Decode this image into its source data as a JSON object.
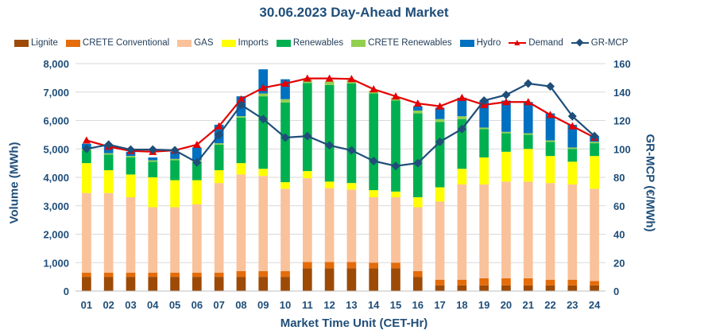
{
  "chart_data": {
    "type": "bar",
    "title": "30.06.2023  Day-Ahead Market",
    "xlabel": "Market Time Unit (CET-Hr)",
    "ylabel": "Volume (MWh)",
    "y2label": "GR-MCP (€/MWh)",
    "ylim": [
      0,
      8000
    ],
    "y2lim": [
      0,
      160
    ],
    "yticks": [
      "0",
      "1,000",
      "2,000",
      "3,000",
      "4,000",
      "5,000",
      "6,000",
      "7,000",
      "8,000"
    ],
    "y2ticks": [
      "0",
      "20",
      "40",
      "60",
      "80",
      "100",
      "120",
      "140",
      "160"
    ],
    "categories": [
      "01",
      "02",
      "03",
      "04",
      "05",
      "06",
      "07",
      "08",
      "09",
      "10",
      "11",
      "12",
      "13",
      "14",
      "15",
      "16",
      "17",
      "18",
      "19",
      "20",
      "21",
      "22",
      "23",
      "24"
    ],
    "series": [
      {
        "name": "Lignite",
        "color": "#9c4a06",
        "values": [
          500,
          500,
          500,
          500,
          500,
          500,
          500,
          500,
          500,
          500,
          800,
          800,
          800,
          800,
          800,
          500,
          200,
          200,
          200,
          200,
          200,
          200,
          200,
          200
        ]
      },
      {
        "name": "CRETE Conventional",
        "color": "#e46c0a",
        "values": [
          150,
          150,
          150,
          150,
          150,
          150,
          150,
          200,
          200,
          200,
          220,
          220,
          220,
          200,
          200,
          200,
          200,
          200,
          250,
          250,
          250,
          200,
          200,
          150
        ]
      },
      {
        "name": "GAS",
        "color": "#f9c29b",
        "values": [
          2800,
          2800,
          2650,
          2300,
          2300,
          2400,
          3150,
          3400,
          3350,
          2900,
          2950,
          2600,
          2550,
          2300,
          2300,
          2250,
          2750,
          3350,
          3300,
          3400,
          3400,
          3400,
          3350,
          3250
        ]
      },
      {
        "name": "Imports",
        "color": "#ffff00",
        "values": [
          1050,
          800,
          800,
          1050,
          950,
          850,
          450,
          400,
          250,
          230,
          250,
          230,
          230,
          250,
          200,
          350,
          500,
          550,
          950,
          1050,
          1150,
          950,
          800,
          1150
        ]
      },
      {
        "name": "Renewables",
        "color": "#00b050",
        "values": [
          450,
          550,
          600,
          550,
          700,
          650,
          900,
          1600,
          2550,
          2800,
          3100,
          3400,
          3500,
          3400,
          3200,
          2950,
          2300,
          1750,
          1000,
          650,
          500,
          500,
          450,
          450
        ]
      },
      {
        "name": "CRETE Renewables",
        "color": "#92d050",
        "values": [
          50,
          50,
          50,
          50,
          50,
          50,
          50,
          50,
          100,
          120,
          130,
          130,
          130,
          100,
          100,
          100,
          100,
          100,
          50,
          50,
          50,
          50,
          50,
          50
        ]
      },
      {
        "name": "Hydro",
        "color": "#0070c0",
        "values": [
          180,
          280,
          150,
          100,
          250,
          450,
          650,
          700,
          850,
          700,
          0,
          0,
          0,
          0,
          0,
          150,
          400,
          650,
          950,
          1100,
          1100,
          950,
          800,
          200
        ]
      }
    ],
    "lines": [
      {
        "name": "Demand",
        "color": "#e50000",
        "marker": "triangle",
        "axis": "left",
        "values": [
          5300,
          5080,
          4930,
          4900,
          4950,
          5150,
          5800,
          6750,
          7150,
          7300,
          7480,
          7480,
          7460,
          7100,
          6850,
          6600,
          6500,
          6800,
          6550,
          6650,
          6650,
          6200,
          5800,
          5400
        ]
      },
      {
        "name": "GR-MCP",
        "color": "#1f4e79",
        "marker": "diamond",
        "axis": "right",
        "values": [
          100,
          103,
          99.5,
          99.5,
          99,
          90.5,
          110,
          131,
          121,
          108,
          109,
          102.5,
          99,
          91.5,
          88,
          90,
          105,
          114,
          134,
          138,
          146,
          144,
          123,
          109
        ]
      }
    ]
  },
  "legend": [
    "Lignite",
    "CRETE Conventional",
    "GAS",
    "Imports",
    "Renewables",
    "CRETE Renewables",
    "Hydro",
    "Demand",
    "GR-MCP"
  ]
}
